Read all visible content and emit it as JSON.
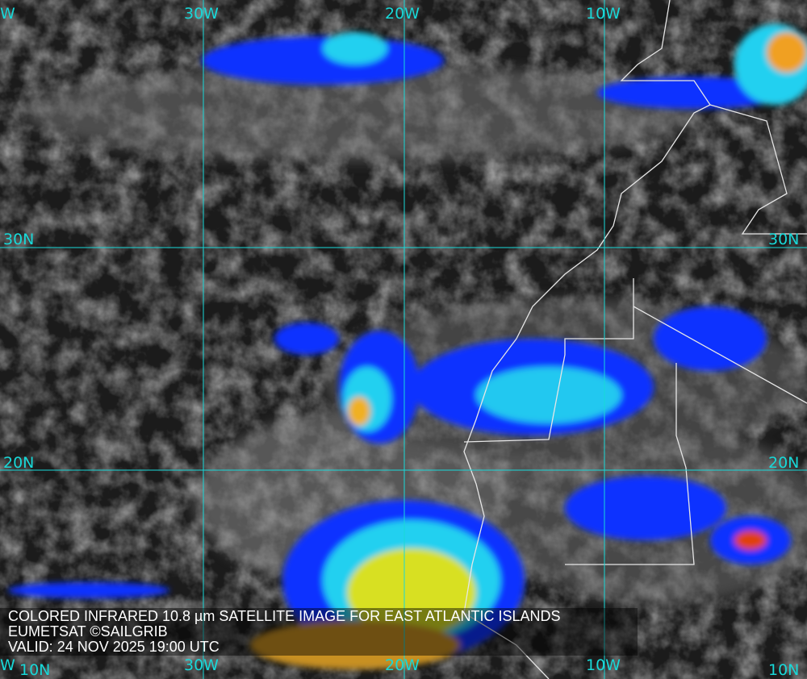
{
  "caption": {
    "line1": "COLORED INFRARED 10.8 µm SATELLITE IMAGE FOR EAST ATLANTIC ISLANDS",
    "line2": "EUMETSAT ©SAILGRIB",
    "line3": "VALID:  24 NOV 2025 19:00 UTC"
  },
  "grid": {
    "color": "#18d8d8",
    "longitudes_top": [
      "W",
      "30W",
      "20W",
      "10W"
    ],
    "longitudes_bottom": [
      "W",
      "30W",
      "20W",
      "10W"
    ],
    "latitudes_left": [
      "30N",
      "20N",
      "10N"
    ],
    "latitudes_right": [
      "30N",
      "20N",
      "10N"
    ]
  },
  "colors": {
    "ocean": "#1b1b1b",
    "cloud": "#8a8a8a",
    "coastline": "#e6e6e6",
    "cold_top_blue": "#1030ff",
    "cold_top_cyan": "#20d0f0",
    "cold_top_yellow": "#f0f020",
    "cold_top_red": "#e03010"
  }
}
